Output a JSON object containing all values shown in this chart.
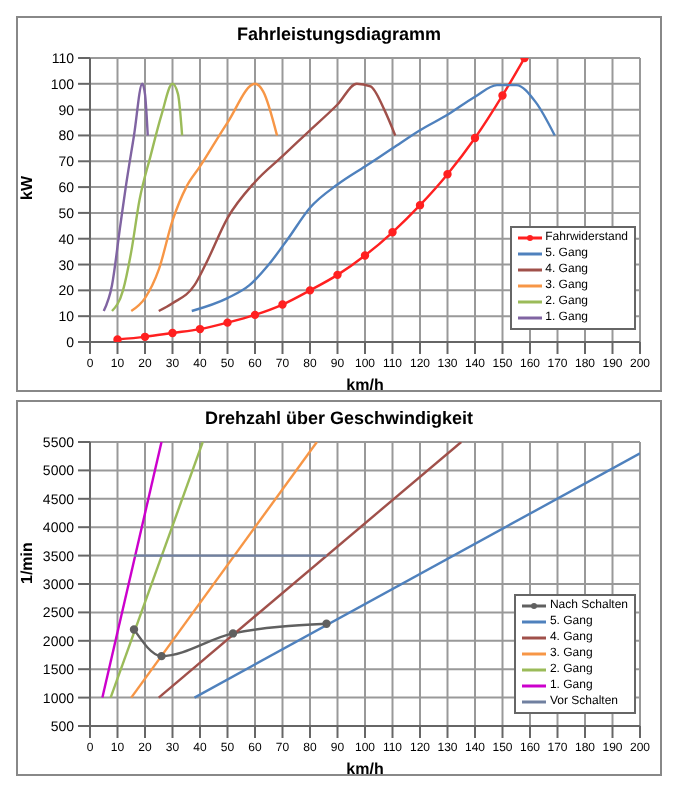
{
  "chart_data": [
    {
      "type": "line",
      "title": "Fahrleistungsdiagramm",
      "xlabel": "km/h",
      "ylabel": "kW",
      "xlim": [
        0,
        200
      ],
      "xticks": [
        0,
        10,
        20,
        30,
        40,
        50,
        60,
        70,
        80,
        90,
        100,
        110,
        120,
        130,
        140,
        150,
        160,
        170,
        180,
        190,
        200
      ],
      "ylim": [
        0,
        110
      ],
      "yticks": [
        0,
        10,
        20,
        30,
        40,
        50,
        60,
        70,
        80,
        90,
        100,
        110
      ],
      "grid": true,
      "legend": "bottom right",
      "marker": "none",
      "series": [
        {
          "name": "Fahrwiderstand",
          "color": "#ff2020",
          "marker": "circle",
          "x": [
            10,
            20,
            30,
            40,
            50,
            60,
            70,
            80,
            90,
            100,
            110,
            120,
            130,
            140,
            150,
            158
          ],
          "values": [
            1,
            2,
            3.5,
            5,
            7.5,
            10.5,
            14.5,
            20,
            26,
            33.5,
            42.5,
            53,
            65,
            79,
            95.5,
            110
          ]
        },
        {
          "name": "5. Gang",
          "color": "#4f81bd",
          "x": [
            37,
            50,
            58,
            65,
            72,
            80,
            90,
            100,
            110,
            120,
            130,
            140,
            148,
            155,
            162,
            169
          ],
          "values": [
            12,
            17,
            22,
            30,
            40,
            52,
            61,
            68,
            75,
            82,
            88,
            95,
            99.5,
            99.5,
            93,
            80
          ]
        },
        {
          "name": "4. Gang",
          "color": "#a0504a",
          "x": [
            25,
            30,
            38,
            42,
            50,
            60,
            70,
            80,
            90,
            97,
            102,
            107,
            111
          ],
          "values": [
            12,
            15,
            22,
            30,
            48,
            62,
            72,
            82,
            92,
            100,
            99,
            90,
            80
          ]
        },
        {
          "name": "3. Gang",
          "color": "#f79646",
          "x": [
            15,
            20,
            25,
            30,
            35,
            40,
            50,
            60,
            63,
            68
          ],
          "values": [
            12,
            17,
            28,
            47,
            60,
            68,
            85,
            100,
            97,
            80
          ]
        },
        {
          "name": "2. Gang",
          "color": "#9bbb59",
          "x": [
            8,
            12,
            15,
            18,
            22,
            26,
            30,
            32,
            33.5
          ],
          "values": [
            12,
            20,
            35,
            55,
            72,
            88,
            100,
            96,
            80
          ]
        },
        {
          "name": "1. Gang",
          "color": "#8064a2",
          "x": [
            5,
            8,
            11,
            13,
            16,
            19,
            20,
            21
          ],
          "values": [
            12,
            22,
            45,
            60,
            80,
            100,
            96,
            80
          ]
        }
      ]
    },
    {
      "type": "line",
      "title": "Drehzahl über Geschwindigkeit",
      "xlabel": "km/h",
      "ylabel": "1/min",
      "xlim": [
        0,
        200
      ],
      "xticks": [
        0,
        10,
        20,
        30,
        40,
        50,
        60,
        70,
        80,
        90,
        100,
        110,
        120,
        130,
        140,
        150,
        160,
        170,
        180,
        190,
        200
      ],
      "ylim": [
        500,
        5500
      ],
      "yticks": [
        500,
        1000,
        1500,
        2000,
        2500,
        3000,
        3500,
        4000,
        4500,
        5000,
        5500
      ],
      "grid": true,
      "legend": "bottom right",
      "marker": "none",
      "series": [
        {
          "name": "Nach Schalten",
          "color": "#606060",
          "marker": "circle",
          "x": [
            16,
            26,
            52,
            86
          ],
          "values": [
            2200,
            1730,
            2130,
            2300
          ]
        },
        {
          "name": "5. Gang",
          "color": "#4f81bd",
          "x": [
            38,
            200
          ],
          "values": [
            1000,
            5300
          ]
        },
        {
          "name": "4. Gang",
          "color": "#a0504a",
          "x": [
            25,
            135
          ],
          "values": [
            1000,
            5500
          ]
        },
        {
          "name": "3. Gang",
          "color": "#f79646",
          "x": [
            15,
            82.5
          ],
          "values": [
            1000,
            5500
          ]
        },
        {
          "name": "2. Gang",
          "color": "#9bbb59",
          "x": [
            7.5,
            41
          ],
          "values": [
            1000,
            5500
          ]
        },
        {
          "name": "1. Gang",
          "color": "#cc00cc",
          "x": [
            4.5,
            26
          ],
          "values": [
            1000,
            5500
          ]
        },
        {
          "name": "Vor Schalten",
          "color": "#7080a0",
          "x": [
            16,
            86
          ],
          "values": [
            3500,
            3500
          ]
        }
      ]
    }
  ]
}
